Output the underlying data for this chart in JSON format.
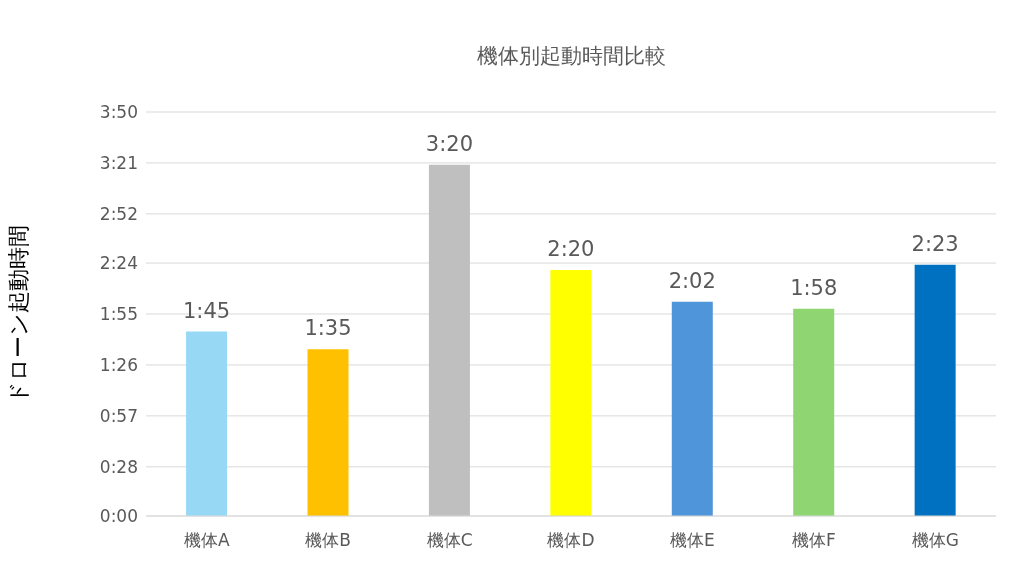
{
  "chart_data": {
    "type": "bar",
    "title": "機体別起動時間比較",
    "ylabel": "ドローン起動時間",
    "categories": [
      "機体A",
      "機体B",
      "機体C",
      "機体D",
      "機体E",
      "機体F",
      "機体G"
    ],
    "values": [
      105,
      95,
      200,
      140,
      122,
      118,
      143
    ],
    "colors": [
      "#97d9f5",
      "#ffc000",
      "#bfbfbf",
      "#ffff00",
      "#4e95d9",
      "#8fd672",
      "#0070c0"
    ],
    "value_labels": [
      "1:45",
      "1:35",
      "3:20",
      "2:20",
      "2:02",
      "1:58",
      "2:23"
    ],
    "ylim": [
      0,
      230
    ],
    "yticks": [
      {
        "value": 0,
        "label": "0:00"
      },
      {
        "value": 28,
        "label": "0:28"
      },
      {
        "value": 57,
        "label": "0:57"
      },
      {
        "value": 86,
        "label": "1:26"
      },
      {
        "value": 115,
        "label": "1:55"
      },
      {
        "value": 144,
        "label": "2:24"
      },
      {
        "value": 172,
        "label": "2:52"
      },
      {
        "value": 201,
        "label": "3:21"
      },
      {
        "value": 230,
        "label": "3:50"
      }
    ],
    "grid": "y"
  }
}
